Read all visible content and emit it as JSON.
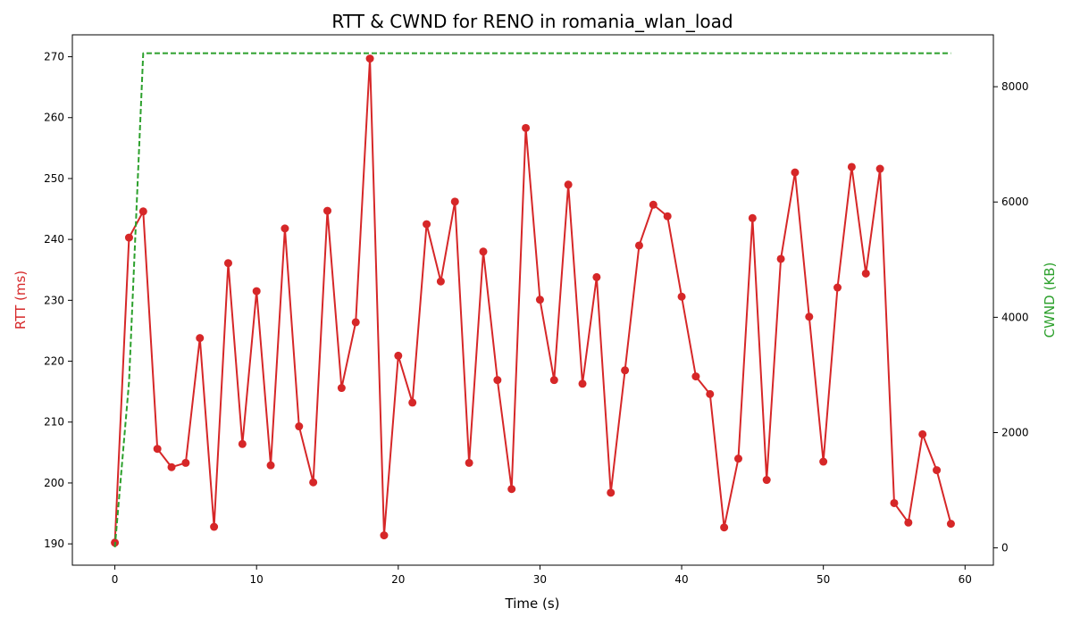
{
  "chart_data": {
    "type": "line",
    "title": "RTT & CWND for RENO in romania_wlan_load",
    "xlabel": "Time (s)",
    "ylabel_left": "RTT (ms)",
    "ylabel_right": "CWND (KB)",
    "xlim": [
      -3,
      62
    ],
    "ylim_left": [
      186.5,
      273.6
    ],
    "ylim_right": [
      -300,
      8900
    ],
    "xticks": [
      0,
      10,
      20,
      30,
      40,
      50,
      60
    ],
    "yticks_left": [
      190,
      200,
      210,
      220,
      230,
      240,
      250,
      260,
      270
    ],
    "yticks_right": [
      0,
      2000,
      4000,
      6000,
      8000
    ],
    "grid": false,
    "series": [
      {
        "axis": "left",
        "color": "#d62728",
        "marker": "circle",
        "x": [
          0,
          1,
          2,
          3,
          4,
          5,
          6,
          7,
          8,
          9,
          10,
          11,
          12,
          13,
          14,
          15,
          16,
          17,
          18,
          19,
          20,
          21,
          22,
          23,
          24,
          25,
          26,
          27,
          28,
          29,
          30,
          31,
          32,
          33,
          34,
          35,
          36,
          37,
          38,
          39,
          40,
          41,
          42,
          43,
          44,
          45,
          46,
          47,
          48,
          49,
          50,
          51,
          52,
          53,
          54,
          55,
          56,
          57,
          58,
          59
        ],
        "values": [
          190.2,
          240.3,
          244.6,
          205.6,
          202.6,
          203.3,
          223.8,
          192.8,
          236.1,
          206.4,
          231.5,
          202.9,
          241.8,
          209.3,
          200.1,
          244.7,
          215.6,
          226.4,
          269.7,
          191.4,
          220.9,
          213.2,
          242.5,
          233.1,
          246.2,
          203.3,
          238.0,
          216.9,
          199.0,
          258.3,
          230.1,
          216.9,
          249.0,
          216.3,
          233.8,
          198.4,
          218.5,
          239.0,
          245.7,
          243.8,
          230.6,
          217.5,
          214.6,
          192.7,
          204.0,
          243.5,
          200.5,
          236.8,
          251.0,
          227.3,
          203.5,
          232.1,
          251.9,
          234.4,
          251.6,
          196.7,
          193.5,
          208.0,
          202.1,
          193.3
        ]
      },
      {
        "axis": "right",
        "color": "#2ca02c",
        "style": "dashed",
        "x": [
          0,
          1,
          2,
          59
        ],
        "values": [
          10,
          2880,
          8580,
          8580
        ]
      }
    ]
  }
}
